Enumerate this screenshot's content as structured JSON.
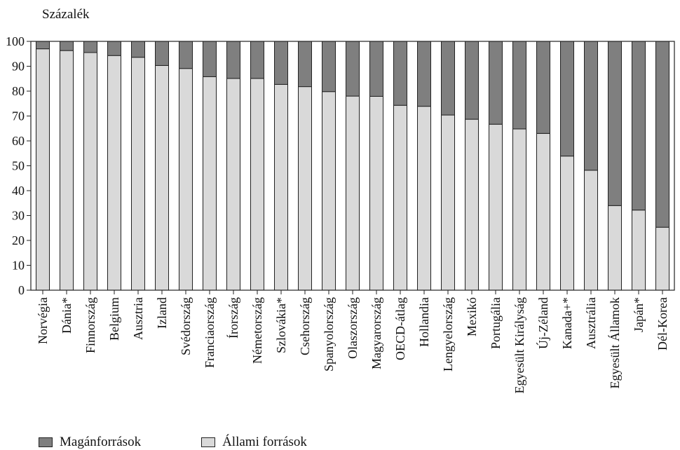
{
  "chart_data": {
    "type": "bar",
    "stacked": true,
    "ylabel": "Százalék",
    "ylim": [
      0,
      100
    ],
    "yticks": [
      0,
      10,
      20,
      30,
      40,
      50,
      60,
      70,
      80,
      90,
      100
    ],
    "categories": [
      "Norvégia",
      "Dánia*",
      "Finnország",
      "Belgium",
      "Ausztria",
      "Izland",
      "Svédország",
      "Franciaország",
      "Írország",
      "Németország",
      "Szlovákia*",
      "Csehország",
      "Spanyolország",
      "Olaszország",
      "Magyarország",
      "OECD-átlag",
      "Hollandia",
      "Lengyelország",
      "Mexikó",
      "Portugália",
      "Egyesült Királyság",
      "Új-Zéland",
      "Kanada+*",
      "Ausztrália",
      "Egyesült Államok",
      "Japán*",
      "Dél-Korea"
    ],
    "series": [
      {
        "name": "Állami források",
        "color": "#d9d9d9",
        "values": [
          97.0,
          96.3,
          95.5,
          94.3,
          93.6,
          90.3,
          89.1,
          85.8,
          85.1,
          85.1,
          82.7,
          81.8,
          79.8,
          78.0,
          77.9,
          74.3,
          73.9,
          70.4,
          68.7,
          66.7,
          64.8,
          63.0,
          53.9,
          48.2,
          34.0,
          32.2,
          25.3
        ]
      },
      {
        "name": "Magánforrások",
        "color": "#7f7f7f",
        "values": [
          3.0,
          3.7,
          4.5,
          5.7,
          6.4,
          9.7,
          10.9,
          14.2,
          14.9,
          14.9,
          17.3,
          18.2,
          20.2,
          22.0,
          22.1,
          25.7,
          26.1,
          29.6,
          31.3,
          33.3,
          35.2,
          37.0,
          46.1,
          51.8,
          66.0,
          67.8,
          74.7
        ]
      }
    ],
    "legend": {
      "position": "bottom-left",
      "order": [
        "Magánforrások",
        "Állami források"
      ]
    },
    "grid": false
  }
}
